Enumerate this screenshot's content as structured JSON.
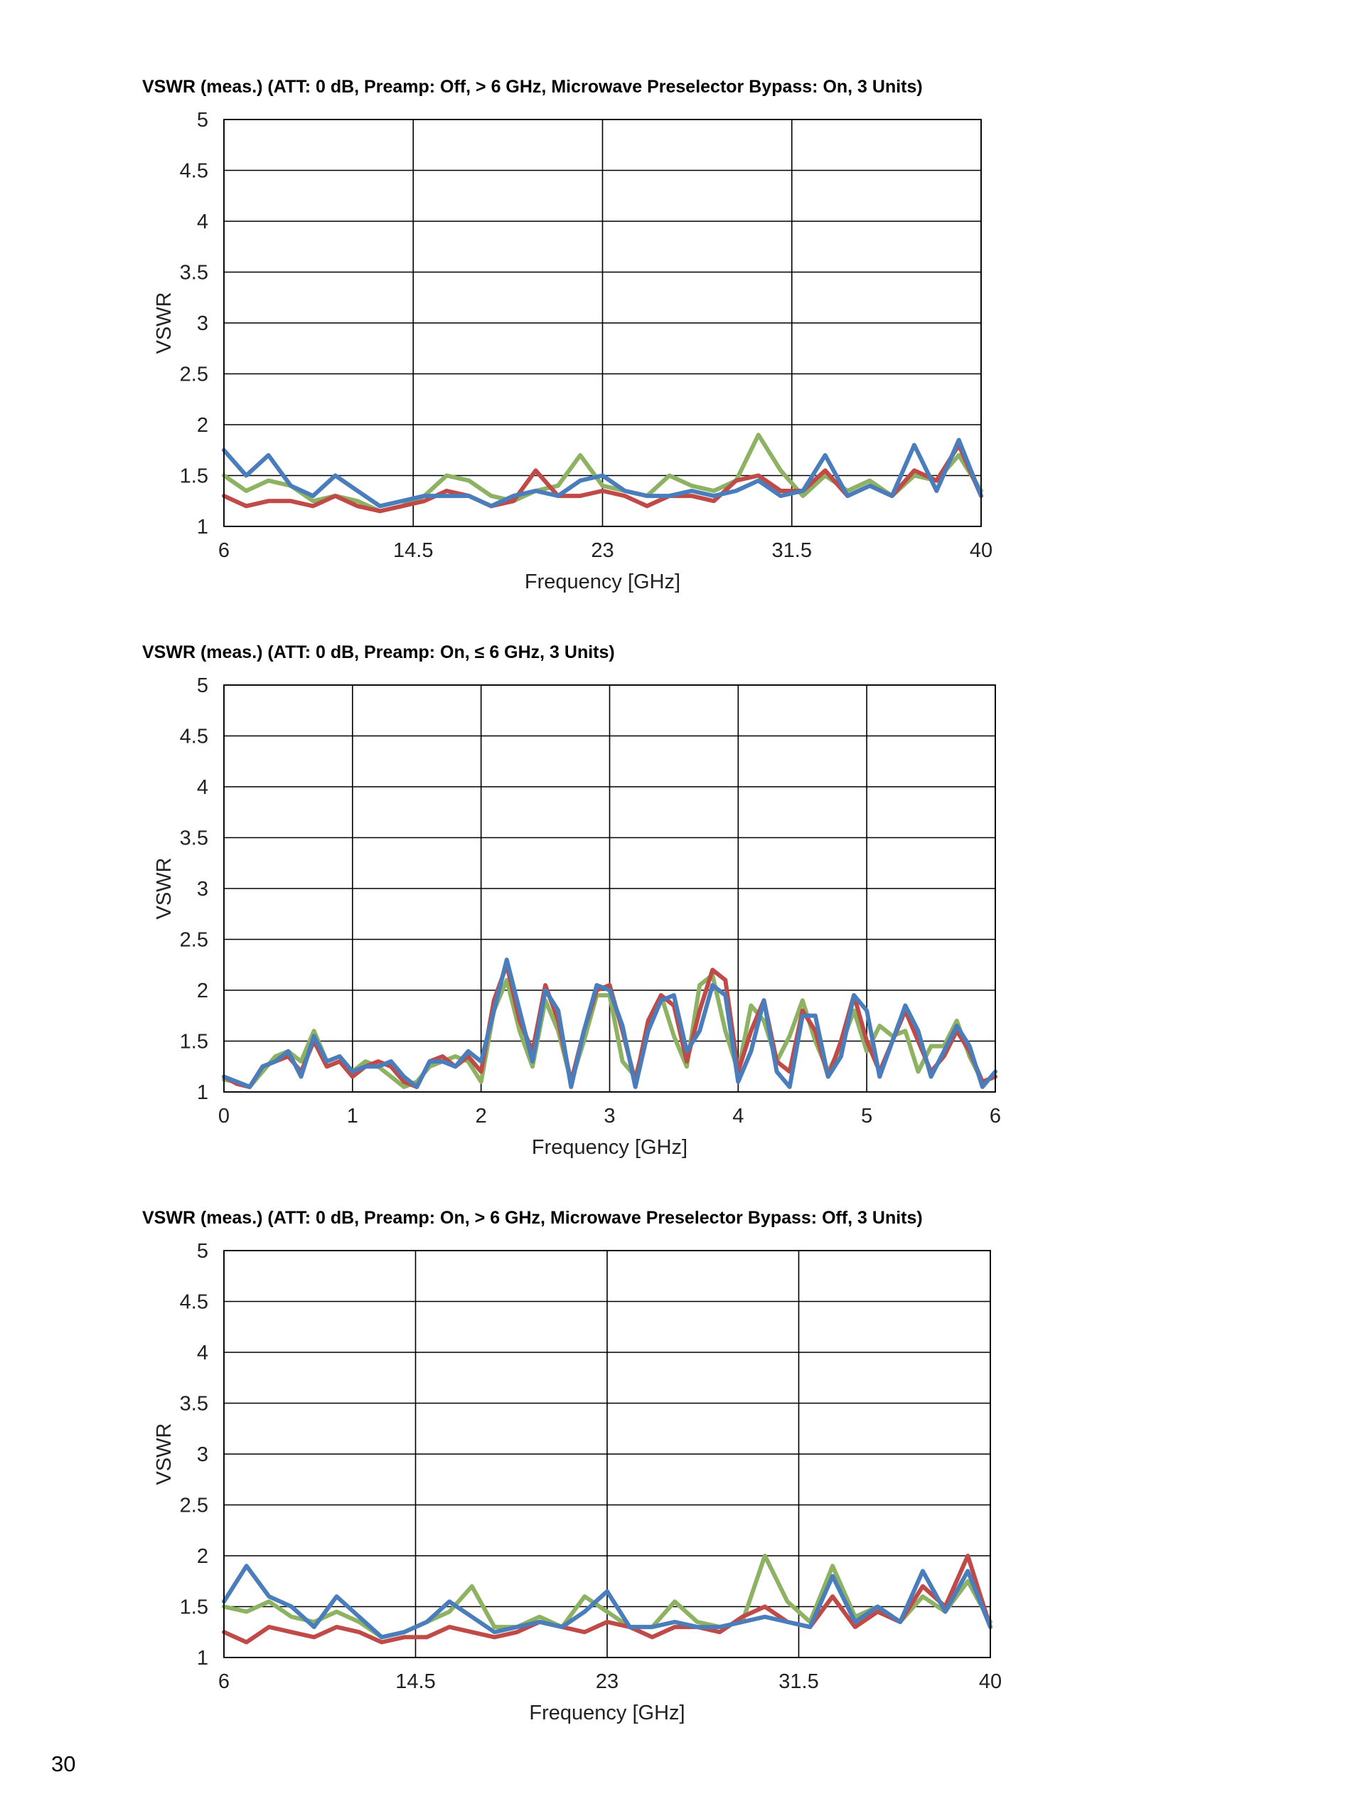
{
  "page": {
    "number": "30"
  },
  "chart_data": [
    {
      "type": "line",
      "title": "VSWR (meas.) (ATT: 0 dB, Preamp: Off, > 6 GHz, Microwave Preselector Bypass: On, 3 Units)",
      "xlabel": "Frequency [GHz]",
      "ylabel": "VSWR",
      "xlim": [
        6,
        40
      ],
      "ylim": [
        1,
        5
      ],
      "xticks": [
        6,
        14.5,
        23,
        31.5,
        40
      ],
      "xtick_labels": [
        "6",
        "14.5",
        "23",
        "31.5",
        "40"
      ],
      "yticks": [
        1,
        1.5,
        2,
        2.5,
        3,
        3.5,
        4,
        4.5,
        5
      ],
      "ytick_labels": [
        "1",
        "1.5",
        "2",
        "2.5",
        "3",
        "3.5",
        "4",
        "4.5",
        "5"
      ],
      "grid": true,
      "legend": "none",
      "series": [
        {
          "color": "#8db262",
          "x": [
            6,
            7,
            8,
            9,
            10,
            11,
            12,
            13,
            14,
            15,
            16,
            17,
            18,
            19,
            20,
            21,
            22,
            23,
            24,
            25,
            26,
            27,
            28,
            29,
            30,
            31,
            32,
            33,
            34,
            35,
            36,
            37,
            38,
            39,
            40
          ],
          "y": [
            1.5,
            1.35,
            1.45,
            1.4,
            1.25,
            1.3,
            1.25,
            1.15,
            1.2,
            1.3,
            1.5,
            1.45,
            1.3,
            1.25,
            1.35,
            1.4,
            1.7,
            1.4,
            1.35,
            1.3,
            1.5,
            1.4,
            1.35,
            1.45,
            1.9,
            1.55,
            1.3,
            1.5,
            1.35,
            1.45,
            1.3,
            1.5,
            1.45,
            1.7,
            1.35
          ]
        },
        {
          "color": "#c04a48",
          "x": [
            6,
            7,
            8,
            9,
            10,
            11,
            12,
            13,
            14,
            15,
            16,
            17,
            18,
            19,
            20,
            21,
            22,
            23,
            24,
            25,
            26,
            27,
            28,
            29,
            30,
            31,
            32,
            33,
            34,
            35,
            36,
            37,
            38,
            39,
            40
          ],
          "y": [
            1.3,
            1.2,
            1.25,
            1.25,
            1.2,
            1.3,
            1.2,
            1.15,
            1.2,
            1.25,
            1.35,
            1.3,
            1.2,
            1.25,
            1.55,
            1.3,
            1.3,
            1.35,
            1.3,
            1.2,
            1.3,
            1.3,
            1.25,
            1.45,
            1.5,
            1.35,
            1.35,
            1.55,
            1.3,
            1.4,
            1.3,
            1.55,
            1.45,
            1.8,
            1.3
          ]
        },
        {
          "color": "#4a7dbb",
          "x": [
            6,
            7,
            8,
            9,
            10,
            11,
            12,
            13,
            14,
            15,
            16,
            17,
            18,
            19,
            20,
            21,
            22,
            23,
            24,
            25,
            26,
            27,
            28,
            29,
            30,
            31,
            32,
            33,
            34,
            35,
            36,
            37,
            38,
            39,
            40
          ],
          "y": [
            1.75,
            1.5,
            1.7,
            1.4,
            1.3,
            1.5,
            1.35,
            1.2,
            1.25,
            1.3,
            1.3,
            1.3,
            1.2,
            1.3,
            1.35,
            1.3,
            1.45,
            1.5,
            1.35,
            1.3,
            1.3,
            1.35,
            1.3,
            1.35,
            1.45,
            1.3,
            1.35,
            1.7,
            1.3,
            1.4,
            1.3,
            1.8,
            1.35,
            1.85,
            1.3
          ]
        }
      ]
    },
    {
      "type": "line",
      "title": "VSWR (meas.) (ATT: 0 dB, Preamp: On, ≤ 6 GHz, 3 Units)",
      "xlabel": "Frequency [GHz]",
      "ylabel": "VSWR",
      "xlim": [
        0,
        6
      ],
      "ylim": [
        1,
        5
      ],
      "xticks": [
        0,
        1,
        2,
        3,
        4,
        5,
        6
      ],
      "xtick_labels": [
        "0",
        "1",
        "2",
        "3",
        "4",
        "5",
        "6"
      ],
      "yticks": [
        1,
        1.5,
        2,
        2.5,
        3,
        3.5,
        4,
        4.5,
        5
      ],
      "ytick_labels": [
        "1",
        "1.5",
        "2",
        "2.5",
        "3",
        "3.5",
        "4",
        "4.5",
        "5"
      ],
      "grid": true,
      "legend": "none",
      "series": [
        {
          "color": "#8db262",
          "x": [
            0,
            0.1,
            0.2,
            0.3,
            0.4,
            0.5,
            0.6,
            0.7,
            0.8,
            0.9,
            1.0,
            1.1,
            1.2,
            1.3,
            1.4,
            1.5,
            1.6,
            1.7,
            1.8,
            1.9,
            2.0,
            2.1,
            2.2,
            2.3,
            2.4,
            2.5,
            2.6,
            2.7,
            2.8,
            2.9,
            3.0,
            3.1,
            3.2,
            3.3,
            3.4,
            3.5,
            3.6,
            3.7,
            3.8,
            3.9,
            4.0,
            4.1,
            4.2,
            4.3,
            4.4,
            4.5,
            4.6,
            4.7,
            4.8,
            4.9,
            5.0,
            5.1,
            5.2,
            5.3,
            5.4,
            5.5,
            5.6,
            5.7,
            5.8,
            5.9,
            6.0
          ],
          "y": [
            1.12,
            1.1,
            1.05,
            1.2,
            1.35,
            1.4,
            1.3,
            1.6,
            1.3,
            1.35,
            1.2,
            1.3,
            1.25,
            1.15,
            1.05,
            1.1,
            1.25,
            1.3,
            1.35,
            1.3,
            1.1,
            1.8,
            2.1,
            1.6,
            1.25,
            1.9,
            1.6,
            1.1,
            1.5,
            1.95,
            1.95,
            1.3,
            1.15,
            1.6,
            1.95,
            1.55,
            1.25,
            2.05,
            2.15,
            1.6,
            1.2,
            1.85,
            1.7,
            1.3,
            1.55,
            1.9,
            1.5,
            1.2,
            1.45,
            1.8,
            1.4,
            1.65,
            1.55,
            1.6,
            1.2,
            1.45,
            1.45,
            1.7,
            1.35,
            1.1,
            1.15
          ]
        },
        {
          "color": "#c04a48",
          "x": [
            0,
            0.1,
            0.2,
            0.3,
            0.4,
            0.5,
            0.6,
            0.7,
            0.8,
            0.9,
            1.0,
            1.1,
            1.2,
            1.3,
            1.4,
            1.5,
            1.6,
            1.7,
            1.8,
            1.9,
            2.0,
            2.1,
            2.2,
            2.3,
            2.4,
            2.5,
            2.6,
            2.7,
            2.8,
            2.9,
            3.0,
            3.1,
            3.2,
            3.3,
            3.4,
            3.5,
            3.6,
            3.7,
            3.8,
            3.9,
            4.0,
            4.1,
            4.2,
            4.3,
            4.4,
            4.5,
            4.6,
            4.7,
            4.8,
            4.9,
            5.0,
            5.1,
            5.2,
            5.3,
            5.4,
            5.5,
            5.6,
            5.7,
            5.8,
            5.9,
            6.0
          ],
          "y": [
            1.15,
            1.08,
            1.05,
            1.25,
            1.3,
            1.35,
            1.2,
            1.5,
            1.25,
            1.3,
            1.15,
            1.25,
            1.3,
            1.25,
            1.1,
            1.05,
            1.3,
            1.35,
            1.25,
            1.35,
            1.2,
            1.9,
            2.25,
            1.7,
            1.4,
            2.05,
            1.7,
            1.1,
            1.6,
            2.0,
            2.05,
            1.6,
            1.1,
            1.7,
            1.95,
            1.85,
            1.3,
            1.8,
            2.2,
            2.1,
            1.2,
            1.6,
            1.9,
            1.3,
            1.2,
            1.8,
            1.6,
            1.15,
            1.5,
            1.95,
            1.5,
            1.2,
            1.5,
            1.8,
            1.5,
            1.2,
            1.35,
            1.6,
            1.4,
            1.1,
            1.15
          ]
        },
        {
          "color": "#4a7dbb",
          "x": [
            0,
            0.1,
            0.2,
            0.3,
            0.4,
            0.5,
            0.6,
            0.7,
            0.8,
            0.9,
            1.0,
            1.1,
            1.2,
            1.3,
            1.4,
            1.5,
            1.6,
            1.7,
            1.8,
            1.9,
            2.0,
            2.1,
            2.2,
            2.3,
            2.4,
            2.5,
            2.6,
            2.7,
            2.8,
            2.9,
            3.0,
            3.1,
            3.2,
            3.3,
            3.4,
            3.5,
            3.6,
            3.7,
            3.8,
            3.9,
            4.0,
            4.1,
            4.2,
            4.3,
            4.4,
            4.5,
            4.6,
            4.7,
            4.8,
            4.9,
            5.0,
            5.1,
            5.2,
            5.3,
            5.4,
            5.5,
            5.6,
            5.7,
            5.8,
            5.9,
            6.0
          ],
          "y": [
            1.15,
            1.1,
            1.05,
            1.25,
            1.3,
            1.4,
            1.15,
            1.55,
            1.3,
            1.35,
            1.2,
            1.25,
            1.25,
            1.3,
            1.15,
            1.05,
            1.3,
            1.3,
            1.25,
            1.4,
            1.3,
            1.8,
            2.3,
            1.8,
            1.3,
            2.0,
            1.8,
            1.05,
            1.6,
            2.05,
            2.0,
            1.65,
            1.05,
            1.6,
            1.9,
            1.95,
            1.4,
            1.6,
            2.05,
            1.95,
            1.1,
            1.4,
            1.9,
            1.2,
            1.05,
            1.75,
            1.75,
            1.15,
            1.35,
            1.95,
            1.8,
            1.15,
            1.5,
            1.85,
            1.6,
            1.15,
            1.4,
            1.65,
            1.45,
            1.05,
            1.2
          ]
        }
      ]
    },
    {
      "type": "line",
      "title": "VSWR (meas.) (ATT: 0 dB, Preamp: On, > 6 GHz, Microwave Preselector Bypass: Off, 3 Units)",
      "xlabel": "Frequency [GHz]",
      "ylabel": "VSWR",
      "xlim": [
        6,
        40
      ],
      "ylim": [
        1,
        5
      ],
      "xticks": [
        6,
        14.5,
        23,
        31.5,
        40
      ],
      "xtick_labels": [
        "6",
        "14.5",
        "23",
        "31.5",
        "40"
      ],
      "yticks": [
        1,
        1.5,
        2,
        2.5,
        3,
        3.5,
        4,
        4.5,
        5
      ],
      "ytick_labels": [
        "1",
        "1.5",
        "2",
        "2.5",
        "3",
        "3.5",
        "4",
        "4.5",
        "5"
      ],
      "grid": true,
      "legend": "none",
      "series": [
        {
          "color": "#8db262",
          "x": [
            6,
            7,
            8,
            9,
            10,
            11,
            12,
            13,
            14,
            15,
            16,
            17,
            18,
            19,
            20,
            21,
            22,
            23,
            24,
            25,
            26,
            27,
            28,
            29,
            30,
            31,
            32,
            33,
            34,
            35,
            36,
            37,
            38,
            39,
            40
          ],
          "y": [
            1.5,
            1.45,
            1.55,
            1.4,
            1.35,
            1.45,
            1.35,
            1.2,
            1.25,
            1.35,
            1.45,
            1.7,
            1.3,
            1.3,
            1.4,
            1.3,
            1.6,
            1.45,
            1.3,
            1.3,
            1.55,
            1.35,
            1.3,
            1.35,
            2.0,
            1.55,
            1.35,
            1.9,
            1.4,
            1.5,
            1.35,
            1.6,
            1.45,
            1.75,
            1.35
          ]
        },
        {
          "color": "#c04a48",
          "x": [
            6,
            7,
            8,
            9,
            10,
            11,
            12,
            13,
            14,
            15,
            16,
            17,
            18,
            19,
            20,
            21,
            22,
            23,
            24,
            25,
            26,
            27,
            28,
            29,
            30,
            31,
            32,
            33,
            34,
            35,
            36,
            37,
            38,
            39,
            40
          ],
          "y": [
            1.25,
            1.15,
            1.3,
            1.25,
            1.2,
            1.3,
            1.25,
            1.15,
            1.2,
            1.2,
            1.3,
            1.25,
            1.2,
            1.25,
            1.35,
            1.3,
            1.25,
            1.35,
            1.3,
            1.2,
            1.3,
            1.3,
            1.25,
            1.4,
            1.5,
            1.35,
            1.3,
            1.6,
            1.3,
            1.45,
            1.35,
            1.7,
            1.5,
            2.0,
            1.3
          ]
        },
        {
          "color": "#4a7dbb",
          "x": [
            6,
            7,
            8,
            9,
            10,
            11,
            12,
            13,
            14,
            15,
            16,
            17,
            18,
            19,
            20,
            21,
            22,
            23,
            24,
            25,
            26,
            27,
            28,
            29,
            30,
            31,
            32,
            33,
            34,
            35,
            36,
            37,
            38,
            39,
            40
          ],
          "y": [
            1.55,
            1.9,
            1.6,
            1.5,
            1.3,
            1.6,
            1.4,
            1.2,
            1.25,
            1.35,
            1.55,
            1.4,
            1.25,
            1.3,
            1.35,
            1.3,
            1.45,
            1.65,
            1.3,
            1.3,
            1.35,
            1.3,
            1.3,
            1.35,
            1.4,
            1.35,
            1.3,
            1.8,
            1.35,
            1.5,
            1.35,
            1.85,
            1.45,
            1.85,
            1.3
          ]
        }
      ]
    }
  ]
}
